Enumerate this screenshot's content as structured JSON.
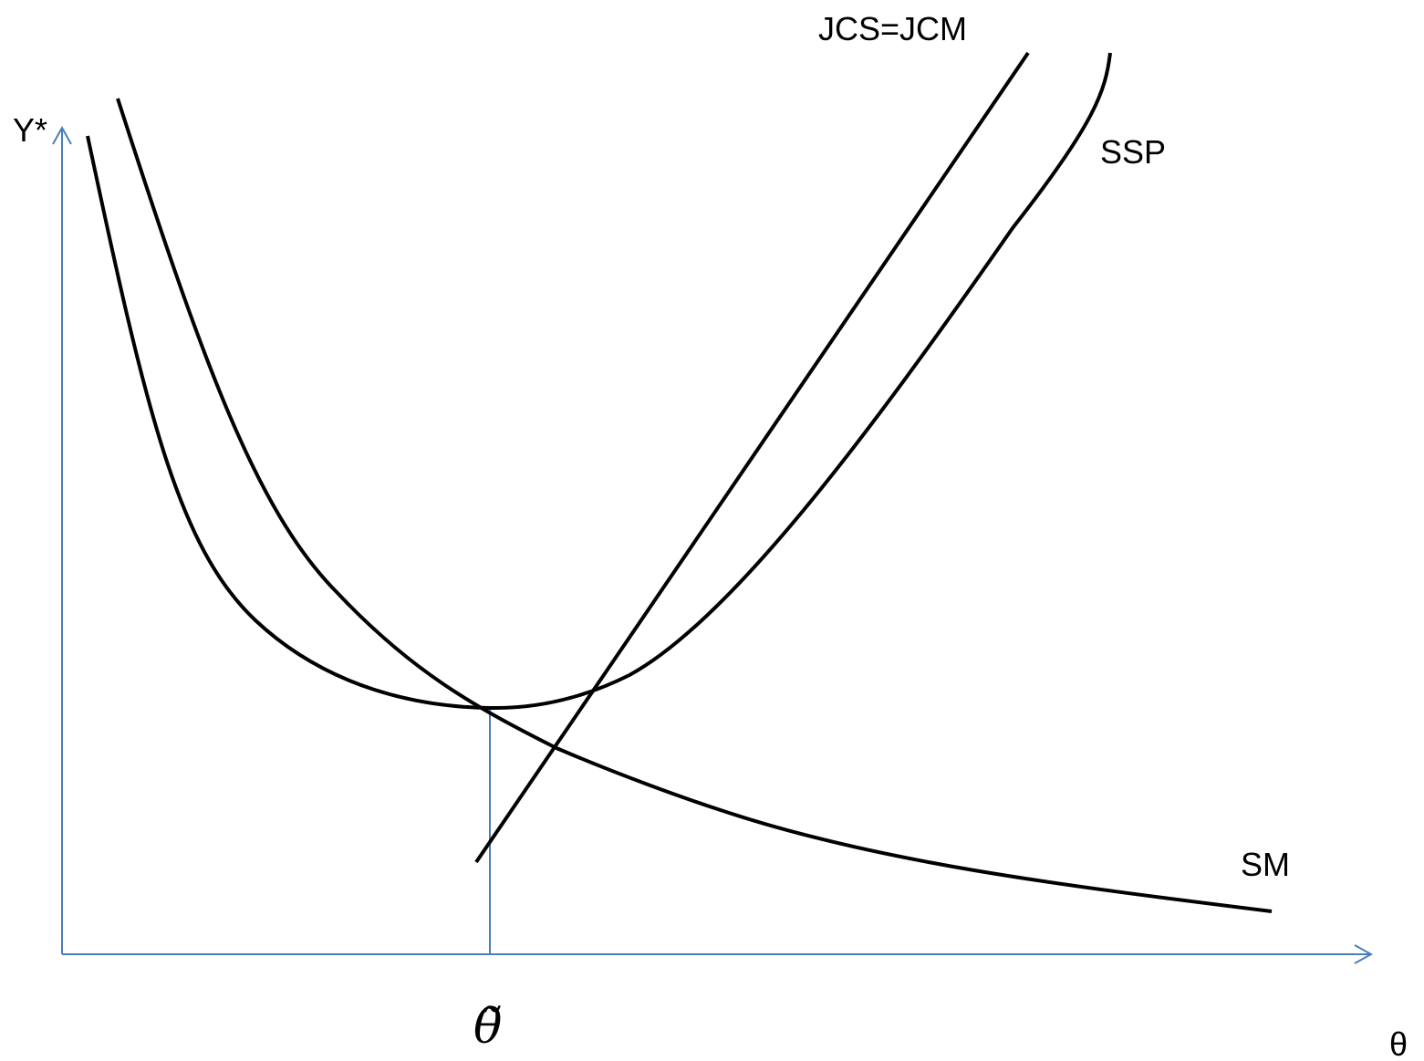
{
  "labels": {
    "y_axis": "Y*",
    "x_axis": "θ",
    "threshold": "θ̃",
    "jcs_jcm": "JCS=JCM",
    "ssp": "SSP",
    "sm": "SM"
  },
  "colors": {
    "axis": "#4a7ebb",
    "curve": "#000000",
    "background": "#ffffff"
  }
}
